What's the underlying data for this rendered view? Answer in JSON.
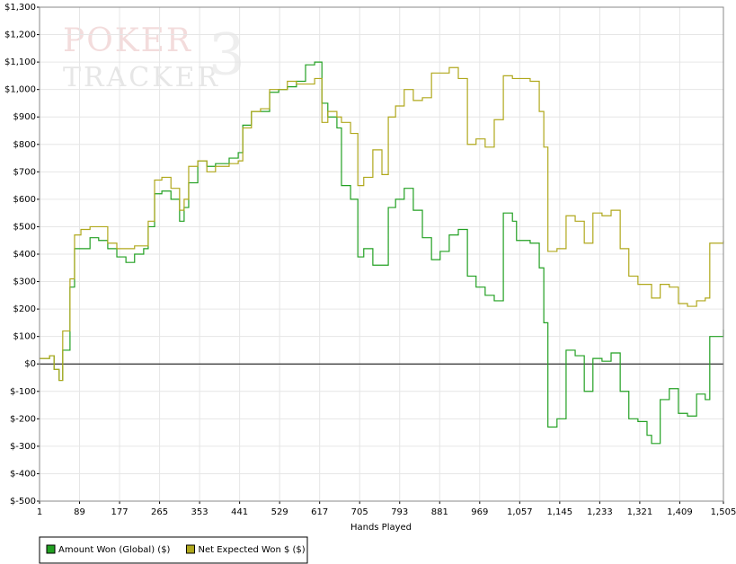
{
  "chart_data": {
    "type": "line",
    "step": true,
    "xlabel": "Hands Played",
    "watermark": [
      "POKER",
      "TRACKER",
      "3"
    ],
    "x": [
      1,
      23,
      33,
      44,
      52,
      68,
      78,
      92,
      112,
      131,
      151,
      171,
      191,
      210,
      230,
      240,
      254,
      270,
      290,
      309,
      319,
      329,
      349,
      369,
      388,
      418,
      438,
      448,
      467,
      487,
      507,
      527,
      546,
      566,
      586,
      606,
      622,
      635,
      655,
      665,
      685,
      701,
      714,
      734,
      754,
      768,
      784,
      803,
      823,
      843,
      863,
      882,
      902,
      922,
      942,
      961,
      981,
      1001,
      1021,
      1041,
      1050,
      1080,
      1100,
      1110,
      1119,
      1139,
      1159,
      1179,
      1199,
      1218,
      1238,
      1258,
      1278,
      1297,
      1317,
      1337,
      1347,
      1366,
      1386,
      1406,
      1426,
      1446,
      1465,
      1475,
      1505
    ],
    "series": [
      {
        "name": "Amount Won (Global) ($)",
        "color": "#22a022",
        "values": [
          20,
          30,
          -20,
          -60,
          50,
          280,
          420,
          420,
          460,
          450,
          420,
          390,
          370,
          400,
          420,
          500,
          620,
          630,
          600,
          520,
          570,
          660,
          740,
          720,
          730,
          750,
          770,
          870,
          920,
          920,
          990,
          1000,
          1010,
          1030,
          1090,
          1100,
          950,
          900,
          860,
          650,
          600,
          390,
          420,
          360,
          360,
          570,
          600,
          640,
          560,
          460,
          380,
          410,
          470,
          490,
          320,
          280,
          250,
          230,
          550,
          520,
          450,
          440,
          350,
          150,
          -230,
          -200,
          50,
          30,
          -100,
          20,
          10,
          40,
          -100,
          -200,
          -210,
          -260,
          -290,
          -130,
          -90,
          -180,
          -190,
          -110,
          -130,
          100,
          125
        ]
      },
      {
        "name": "Net Expected Won $ ($)",
        "color": "#b0a81c",
        "values": [
          20,
          30,
          -20,
          -60,
          120,
          310,
          470,
          490,
          500,
          500,
          440,
          420,
          420,
          430,
          430,
          520,
          670,
          680,
          640,
          560,
          600,
          720,
          740,
          700,
          720,
          730,
          740,
          860,
          920,
          930,
          1000,
          1000,
          1030,
          1020,
          1020,
          1040,
          880,
          920,
          900,
          880,
          840,
          650,
          680,
          780,
          690,
          900,
          940,
          1000,
          960,
          970,
          1060,
          1060,
          1080,
          1040,
          800,
          820,
          790,
          890,
          1050,
          1040,
          1040,
          1030,
          920,
          790,
          410,
          420,
          540,
          520,
          440,
          550,
          540,
          560,
          420,
          320,
          290,
          290,
          240,
          290,
          280,
          220,
          210,
          230,
          240,
          440,
          450
        ]
      }
    ],
    "xlim": [
      1,
      1505
    ],
    "xticks": [
      1,
      89,
      177,
      265,
      353,
      441,
      529,
      617,
      705,
      793,
      881,
      969,
      {
        "value": 1057,
        "label": "1,057"
      },
      {
        "value": 1145,
        "label": "1,145"
      },
      {
        "value": 1233,
        "label": "1,233"
      },
      {
        "value": 1321,
        "label": "1,321"
      },
      {
        "value": 1409,
        "label": "1,409"
      },
      {
        "value": 1505,
        "label": "1,505"
      }
    ],
    "ylim": [
      -500,
      1300
    ],
    "yticks": [
      {
        "value": -500,
        "label": "$-500"
      },
      {
        "value": -400,
        "label": "$-400"
      },
      {
        "value": -300,
        "label": "$-300"
      },
      {
        "value": -200,
        "label": "$-200"
      },
      {
        "value": -100,
        "label": "$-100"
      },
      {
        "value": 0,
        "label": "$0"
      },
      {
        "value": 100,
        "label": "$100"
      },
      {
        "value": 200,
        "label": "$200"
      },
      {
        "value": 300,
        "label": "$300"
      },
      {
        "value": 400,
        "label": "$400"
      },
      {
        "value": 500,
        "label": "$500"
      },
      {
        "value": 600,
        "label": "$600"
      },
      {
        "value": 700,
        "label": "$700"
      },
      {
        "value": 800,
        "label": "$800"
      },
      {
        "value": 900,
        "label": "$900"
      },
      {
        "value": 1000,
        "label": "$1,000"
      },
      {
        "value": 1100,
        "label": "$1,100"
      },
      {
        "value": 1200,
        "label": "$1,200"
      },
      {
        "value": 1300,
        "label": "$1,300"
      }
    ],
    "grid": true,
    "legend": "bottom-left"
  }
}
